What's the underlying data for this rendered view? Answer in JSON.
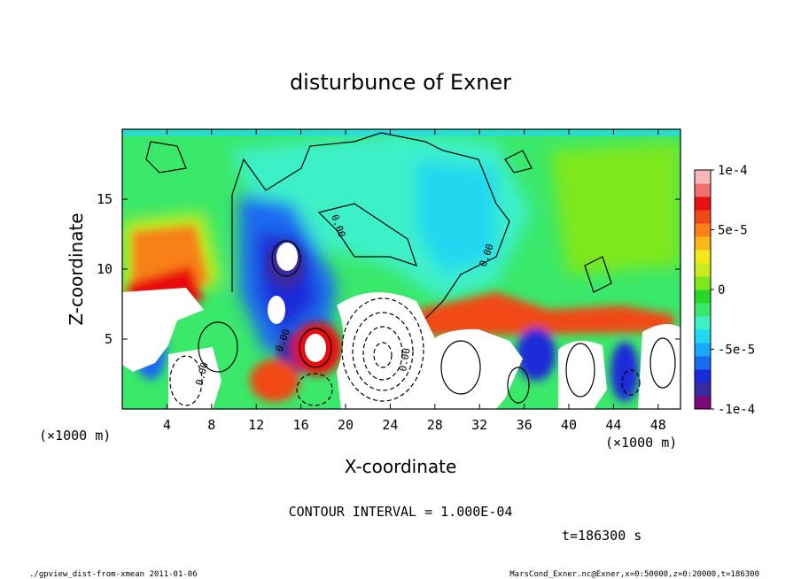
{
  "chart_data": {
    "type": "heatmap",
    "title": "disturbunce of Exner",
    "xlabel": "X-coordinate",
    "ylabel": "Z-coordinate",
    "x_unit": "(×1000 m)",
    "y_unit": "(×1000 m)",
    "xlim": [
      0,
      50
    ],
    "ylim": [
      0,
      20
    ],
    "x_ticks": [
      4,
      8,
      12,
      16,
      20,
      24,
      28,
      32,
      36,
      40,
      44,
      48
    ],
    "y_ticks": [
      5,
      10,
      15
    ],
    "colorbar": {
      "min": -0.0001,
      "max": 0.0001,
      "tick_values": [
        0.0001,
        5e-05,
        0,
        -5e-05,
        -0.0001
      ],
      "tick_labels": [
        "1e-4",
        "5e-5",
        "0",
        "-5e-5",
        "-1e-4"
      ],
      "colors": [
        "#7a0a7a",
        "#3a2aa0",
        "#1a2ad8",
        "#1a6af0",
        "#1aa8f8",
        "#22d8f0",
        "#3ef0c8",
        "#3ae86a",
        "#28d828",
        "#7ee81e",
        "#c8ec1e",
        "#f4e81a",
        "#f8b818",
        "#f88018",
        "#f04818",
        "#e81010",
        "#f07070",
        "#f8b8b8"
      ]
    },
    "contour_labels": [
      "0.00",
      "0.00",
      "0.00",
      "0.00",
      "0.00"
    ],
    "contour_interval_text": "CONTOUR INTERVAL = 1.000E-04",
    "time_text": "t=186300 s"
  },
  "footer": {
    "left": "./gpview_dist-from-xmean  2011-01-06",
    "right": "MarsCond_Exner.nc@Exner,x=0:50000,z=0:20000,t=186300"
  }
}
